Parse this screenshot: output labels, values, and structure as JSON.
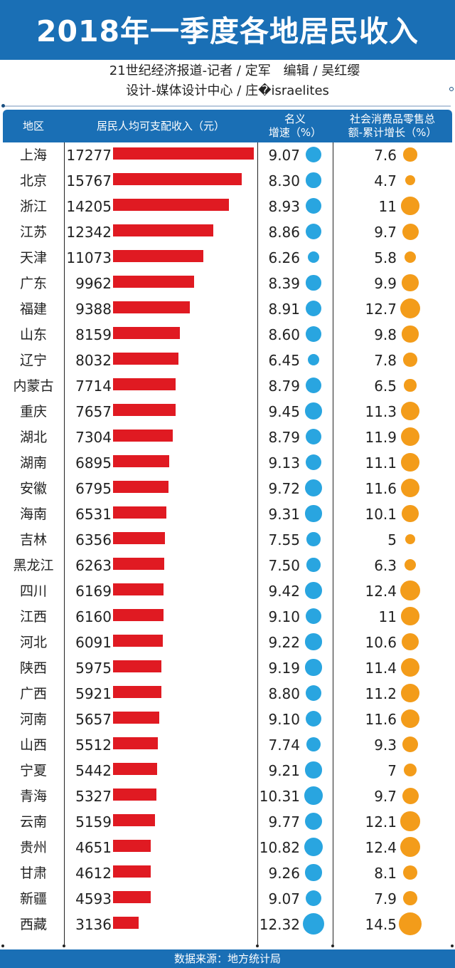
{
  "title": "2018年一季度各地居民收入",
  "credits": {
    "line1": "21世纪经济报道-记者 / 定军　编辑 / 吴红缨",
    "line2": "设计-媒体设计中心 / 庄�israelites"
  },
  "headers": {
    "region": "地区",
    "income": "居民人均可支配收入（元）",
    "growth_line1": "名义",
    "growth_line2": "增速（%）",
    "retail_line1": "社会消费品零售总",
    "retail_line2": "额-累计增长（%）"
  },
  "source": "数据来源：地方统计局",
  "colors": {
    "header": "#1a6fb5",
    "bar": "#e01a22",
    "growth_dot": "#29a5e0",
    "retail_dot": "#f39c1a"
  },
  "chart_data": {
    "type": "table",
    "columns": [
      "地区",
      "居民人均可支配收入（元）",
      "名义增速（%）",
      "社会消费品零售总额-累计增长（%）"
    ],
    "rows": [
      {
        "region": "上海",
        "income": "17277",
        "growth": "9.07",
        "retail": "7.6"
      },
      {
        "region": "北京",
        "income": "15767",
        "growth": "8.30",
        "retail": "4.7"
      },
      {
        "region": "浙江",
        "income": "14205",
        "growth": "8.93",
        "retail": "11"
      },
      {
        "region": "江苏",
        "income": "12342",
        "growth": "8.86",
        "retail": "9.7"
      },
      {
        "region": "天津",
        "income": "11073",
        "growth": "6.26",
        "retail": "5.8"
      },
      {
        "region": "广东",
        "income": "9962",
        "growth": "8.39",
        "retail": "9.9"
      },
      {
        "region": "福建",
        "income": "9388",
        "growth": "8.91",
        "retail": "12.7"
      },
      {
        "region": "山东",
        "income": "8159",
        "growth": "8.60",
        "retail": "9.8"
      },
      {
        "region": "辽宁",
        "income": "8032",
        "growth": "6.45",
        "retail": "7.8"
      },
      {
        "region": "内蒙古",
        "income": "7714",
        "growth": "8.79",
        "retail": "6.5"
      },
      {
        "region": "重庆",
        "income": "7657",
        "growth": "9.45",
        "retail": "11.3"
      },
      {
        "region": "湖北",
        "income": "7304",
        "growth": "8.79",
        "retail": "11.9"
      },
      {
        "region": "湖南",
        "income": "6895",
        "growth": "9.13",
        "retail": "11.1"
      },
      {
        "region": "安徽",
        "income": "6795",
        "growth": "9.72",
        "retail": "11.6"
      },
      {
        "region": "海南",
        "income": "6531",
        "growth": "9.31",
        "retail": "10.1"
      },
      {
        "region": "吉林",
        "income": "6356",
        "growth": "7.55",
        "retail": "5"
      },
      {
        "region": "黑龙江",
        "income": "6263",
        "growth": "7.50",
        "retail": "6.3"
      },
      {
        "region": "四川",
        "income": "6169",
        "growth": "9.42",
        "retail": "12.4"
      },
      {
        "region": "江西",
        "income": "6160",
        "growth": "9.10",
        "retail": "11"
      },
      {
        "region": "河北",
        "income": "6091",
        "growth": "9.22",
        "retail": "10.6"
      },
      {
        "region": "陕西",
        "income": "5975",
        "growth": "9.19",
        "retail": "11.4"
      },
      {
        "region": "广西",
        "income": "5921",
        "growth": "8.80",
        "retail": "11.2"
      },
      {
        "region": "河南",
        "income": "5657",
        "growth": "9.10",
        "retail": "11.6"
      },
      {
        "region": "山西",
        "income": "5512",
        "growth": "7.74",
        "retail": "9.3"
      },
      {
        "region": "宁夏",
        "income": "5442",
        "growth": "9.21",
        "retail": "7"
      },
      {
        "region": "青海",
        "income": "5327",
        "growth": "10.31",
        "retail": "9.7"
      },
      {
        "region": "云南",
        "income": "5159",
        "growth": "9.77",
        "retail": "12.1"
      },
      {
        "region": "贵州",
        "income": "4651",
        "growth": "10.82",
        "retail": "12.4"
      },
      {
        "region": "甘肃",
        "income": "4612",
        "growth": "9.26",
        "retail": "8.1"
      },
      {
        "region": "新疆",
        "income": "4593",
        "growth": "9.07",
        "retail": "7.9"
      },
      {
        "region": "西藏",
        "income": "3136",
        "growth": "12.32",
        "retail": "14.5"
      }
    ]
  }
}
